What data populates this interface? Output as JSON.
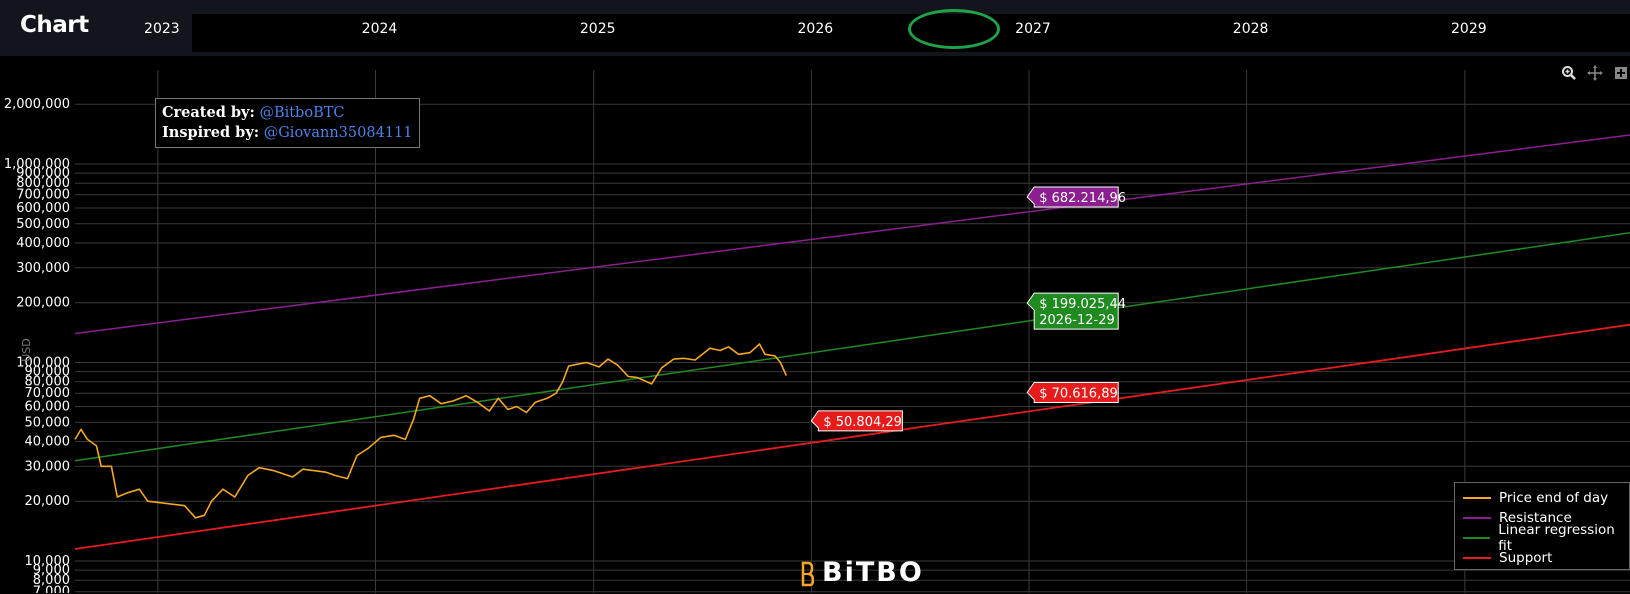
{
  "header": {
    "title": "Chart",
    "years": [
      "2023",
      "2024",
      "2025",
      "2026",
      "2027",
      "2028",
      "2029"
    ],
    "highlighted_year": "2026"
  },
  "toolbar": {
    "icons": [
      "zoom-icon",
      "pan-icon",
      "plus-icon"
    ]
  },
  "credits": {
    "created_label": "Created by:",
    "created_handle": "@BitboBTC",
    "inspired_label": "Inspired by:",
    "inspired_handle": "@Giovann35084111"
  },
  "brand": {
    "name": "BiTBO"
  },
  "colors": {
    "price": "#f5a623",
    "resistance": "#8b1f8f",
    "regression": "#1f8a1f",
    "support": "#e61b1b",
    "grid": "#3a3a3a"
  },
  "chart_data": {
    "type": "line",
    "ylabel": "USD",
    "yscale": "log",
    "ylim": [
      7000,
      2500000
    ],
    "xlim": [
      "2022-08-15",
      "2029-10-05"
    ],
    "y_ticks": [
      7000,
      8000,
      9000,
      10000,
      20000,
      30000,
      40000,
      50000,
      60000,
      70000,
      80000,
      90000,
      100000,
      200000,
      300000,
      400000,
      500000,
      600000,
      700000,
      800000,
      900000,
      1000000,
      2000000
    ],
    "y_tick_labels": [
      "7,000",
      "8,000",
      "9,000",
      "10,000",
      "20,000",
      "30,000",
      "40,000",
      "50,000",
      "60,000",
      "70,000",
      "80,000",
      "90,000",
      "100,000",
      "200,000",
      "300,000",
      "400,000",
      "500,000",
      "600,000",
      "700,000",
      "800,000",
      "900,000",
      "1,000,000",
      "2,000,000"
    ],
    "x_gridlines": [
      "2023-01-01",
      "2024-01-01",
      "2025-01-01",
      "2026-01-01",
      "2027-01-01",
      "2028-01-01",
      "2029-01-01"
    ],
    "series": [
      {
        "name": "Price end of day",
        "color": "#f5a623",
        "points": [
          [
            "2022-08-15",
            41000
          ],
          [
            "2022-08-25",
            46000
          ],
          [
            "2022-09-05",
            41000
          ],
          [
            "2022-09-20",
            38000
          ],
          [
            "2022-09-28",
            30000
          ],
          [
            "2022-10-15",
            30000
          ],
          [
            "2022-10-25",
            21000
          ],
          [
            "2022-11-10",
            22000
          ],
          [
            "2022-12-01",
            23000
          ],
          [
            "2022-12-15",
            20000
          ],
          [
            "2023-01-15",
            19500
          ],
          [
            "2023-02-15",
            19000
          ],
          [
            "2023-03-05",
            16500
          ],
          [
            "2023-03-20",
            17000
          ],
          [
            "2023-04-01",
            20000
          ],
          [
            "2023-04-20",
            23000
          ],
          [
            "2023-05-10",
            21000
          ],
          [
            "2023-06-01",
            27000
          ],
          [
            "2023-06-20",
            29500
          ],
          [
            "2023-07-15",
            28500
          ],
          [
            "2023-08-15",
            26500
          ],
          [
            "2023-09-01",
            29000
          ],
          [
            "2023-10-10",
            28000
          ],
          [
            "2023-10-25",
            27000
          ],
          [
            "2023-11-15",
            26000
          ],
          [
            "2023-12-01",
            34000
          ],
          [
            "2023-12-20",
            37000
          ],
          [
            "2024-01-10",
            42000
          ],
          [
            "2024-02-01",
            43000
          ],
          [
            "2024-02-20",
            41000
          ],
          [
            "2024-03-05",
            52000
          ],
          [
            "2024-03-15",
            66000
          ],
          [
            "2024-04-01",
            68000
          ],
          [
            "2024-04-20",
            62000
          ],
          [
            "2024-05-10",
            64000
          ],
          [
            "2024-06-01",
            68000
          ],
          [
            "2024-06-20",
            63000
          ],
          [
            "2024-07-10",
            57000
          ],
          [
            "2024-07-25",
            66000
          ],
          [
            "2024-08-10",
            58000
          ],
          [
            "2024-08-25",
            60000
          ],
          [
            "2024-09-10",
            56000
          ],
          [
            "2024-09-25",
            63000
          ],
          [
            "2024-10-15",
            66000
          ],
          [
            "2024-10-30",
            70000
          ],
          [
            "2024-11-10",
            80000
          ],
          [
            "2024-11-20",
            96000
          ],
          [
            "2024-12-05",
            98000
          ],
          [
            "2024-12-20",
            100000
          ],
          [
            "2025-01-10",
            95000
          ],
          [
            "2025-01-25",
            104000
          ],
          [
            "2025-02-10",
            97000
          ],
          [
            "2025-02-28",
            85000
          ],
          [
            "2025-03-15",
            84000
          ],
          [
            "2025-04-08",
            78000
          ],
          [
            "2025-04-25",
            94000
          ],
          [
            "2025-05-15",
            104000
          ],
          [
            "2025-06-01",
            105000
          ],
          [
            "2025-06-20",
            103000
          ],
          [
            "2025-07-15",
            118000
          ],
          [
            "2025-08-01",
            115000
          ],
          [
            "2025-08-15",
            120000
          ],
          [
            "2025-09-01",
            110000
          ],
          [
            "2025-09-20",
            112000
          ],
          [
            "2025-10-06",
            124000
          ],
          [
            "2025-10-15",
            110000
          ],
          [
            "2025-11-01",
            108000
          ],
          [
            "2025-11-10",
            100000
          ],
          [
            "2025-11-20",
            86000
          ]
        ]
      },
      {
        "name": "Resistance",
        "color": "#8b1f8f",
        "points": [
          [
            "2022-08-15",
            140000
          ],
          [
            "2029-10-05",
            1400000
          ]
        ]
      },
      {
        "name": "Linear regression fit",
        "color": "#1f8a1f",
        "points": [
          [
            "2022-08-15",
            32000
          ],
          [
            "2029-10-05",
            450000
          ]
        ]
      },
      {
        "name": "Support",
        "color": "#e61b1b",
        "points": [
          [
            "2022-08-15",
            11500
          ],
          [
            "2029-10-05",
            155000
          ]
        ]
      }
    ],
    "annotations": [
      {
        "date": "2026-12-29",
        "value": 682214.96,
        "text": "$ 682.214,96",
        "color": "#8b1f8f"
      },
      {
        "date": "2026-12-29",
        "value": 199025.44,
        "text": "$ 199.025,44",
        "subtext": "2026-12-29",
        "color": "#1f8a1f"
      },
      {
        "date": "2026-12-29",
        "value": 70616.89,
        "text": "$ 70.616,89",
        "color": "#e61b1b"
      },
      {
        "date": "2026-01-01",
        "value": 50804.29,
        "text": "$ 50.804,29",
        "color": "#e61b1b"
      }
    ],
    "legend": {
      "position": "bottom-right"
    },
    "grid": true
  }
}
